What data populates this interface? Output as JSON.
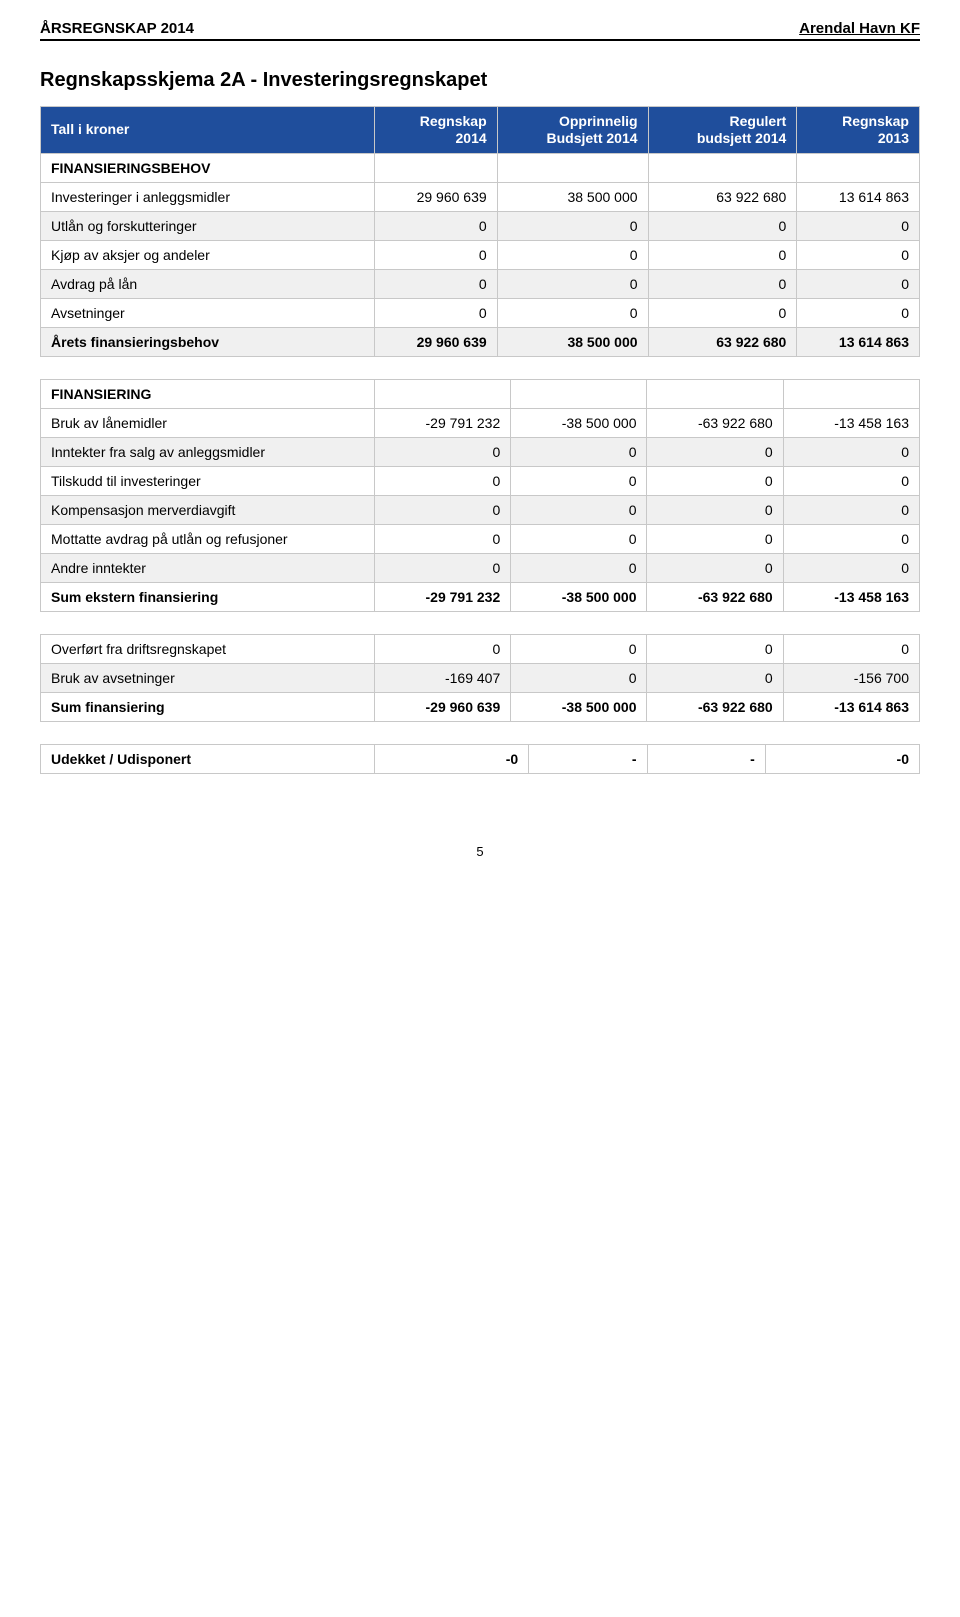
{
  "header": {
    "left": "ÅRSREGNSKAP 2014",
    "right": "Arendal Havn KF"
  },
  "title": "Regnskapsskjema 2A - Investeringsregnskapet",
  "theme": {
    "header_bg": "#1f4e9c",
    "header_fg": "#ffffff",
    "row_alt_bg": "#f0f0f0",
    "border": "#c8c8c8"
  },
  "columns": [
    "Tall i kroner",
    "Regnskap\n2014",
    "Opprinnelig\nBudsjett 2014",
    "Regulert\nbudsjett 2014",
    "Regnskap\n2013"
  ],
  "tables": [
    {
      "rows": [
        {
          "type": "section",
          "cells": [
            "FINANSIERINGSBEHOV",
            "",
            "",
            "",
            ""
          ]
        },
        {
          "type": "data",
          "cells": [
            "Investeringer i anleggsmidler",
            "29 960 639",
            "38 500 000",
            "63 922 680",
            "13 614 863"
          ]
        },
        {
          "type": "data",
          "cells": [
            "Utlån og forskutteringer",
            "0",
            "0",
            "0",
            "0"
          ]
        },
        {
          "type": "data",
          "cells": [
            "Kjøp av aksjer og andeler",
            "0",
            "0",
            "0",
            "0"
          ]
        },
        {
          "type": "data",
          "cells": [
            "Avdrag på lån",
            "0",
            "0",
            "0",
            "0"
          ]
        },
        {
          "type": "data",
          "cells": [
            "Avsetninger",
            "0",
            "0",
            "0",
            "0"
          ]
        },
        {
          "type": "sum",
          "cells": [
            "Årets finansieringsbehov",
            "29 960 639",
            "38 500 000",
            "63 922 680",
            "13 614 863"
          ]
        }
      ]
    },
    {
      "rows": [
        {
          "type": "section",
          "cells": [
            "FINANSIERING",
            "",
            "",
            "",
            ""
          ]
        },
        {
          "type": "data",
          "cells": [
            "Bruk av lånemidler",
            "-29 791 232",
            "-38 500 000",
            "-63 922 680",
            "-13 458 163"
          ]
        },
        {
          "type": "data",
          "cells": [
            "Inntekter fra salg av anleggsmidler",
            "0",
            "0",
            "0",
            "0"
          ]
        },
        {
          "type": "data",
          "cells": [
            "Tilskudd til investeringer",
            "0",
            "0",
            "0",
            "0"
          ]
        },
        {
          "type": "data",
          "cells": [
            "Kompensasjon merverdiavgift",
            "0",
            "0",
            "0",
            "0"
          ]
        },
        {
          "type": "data",
          "cells": [
            "Mottatte avdrag på utlån og refusjoner",
            "0",
            "0",
            "0",
            "0"
          ]
        },
        {
          "type": "data",
          "cells": [
            "Andre inntekter",
            "0",
            "0",
            "0",
            "0"
          ]
        },
        {
          "type": "sum",
          "cells": [
            "Sum ekstern finansiering",
            "-29 791 232",
            "-38 500 000",
            "-63 922 680",
            "-13 458 163"
          ]
        }
      ]
    },
    {
      "rows": [
        {
          "type": "data",
          "cells": [
            "Overført fra driftsregnskapet",
            "0",
            "0",
            "0",
            "0"
          ]
        },
        {
          "type": "data",
          "cells": [
            "Bruk av avsetninger",
            "-169 407",
            "0",
            "0",
            "-156 700"
          ]
        },
        {
          "type": "sum",
          "cells": [
            "Sum finansiering",
            "-29 960 639",
            "-38 500 000",
            "-63 922 680",
            "-13 614 863"
          ]
        }
      ]
    },
    {
      "rows": [
        {
          "type": "sum",
          "cells": [
            "Udekket / Udisponert",
            "-0",
            "-",
            "-",
            "-0"
          ]
        }
      ]
    }
  ],
  "page_number": "5"
}
